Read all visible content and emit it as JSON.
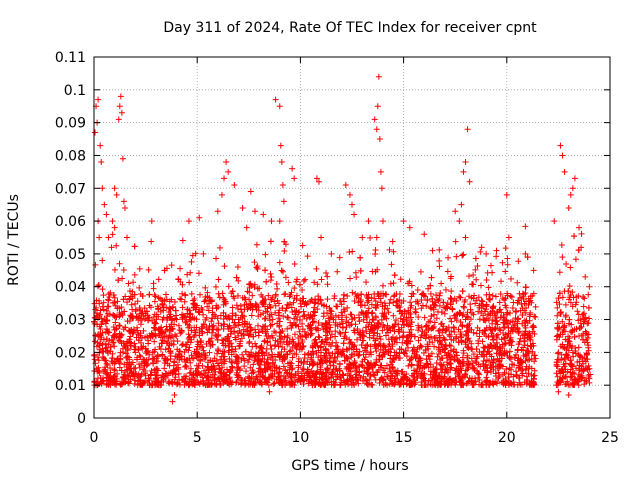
{
  "chart_data": {
    "type": "scatter",
    "title": "Day 311 of 2024, Rate Of TEC Index for receiver cpnt",
    "xlabel": "GPS time / hours",
    "ylabel": "ROTI / TECUs",
    "xlim": [
      0,
      25
    ],
    "ylim": [
      0,
      0.11
    ],
    "x_ticks": [
      0,
      5,
      10,
      15,
      20,
      25
    ],
    "x_tick_labels": [
      "0",
      "5",
      "10",
      "15",
      "20",
      "25"
    ],
    "y_ticks": [
      0,
      0.01,
      0.02,
      0.03,
      0.04,
      0.05,
      0.06,
      0.07,
      0.08,
      0.09,
      0.1,
      0.11
    ],
    "y_tick_labels": [
      "0",
      "0.01",
      "0.02",
      "0.03",
      "0.04",
      "0.05",
      "0.06",
      "0.07",
      "0.08",
      "0.09",
      "0.1",
      "0.11"
    ],
    "grid": true,
    "marker": "+",
    "colors": {
      "points": "#ff0000",
      "grid": "#a0a0a0",
      "axes": "#000000"
    },
    "series": [
      {
        "name": "ROTI",
        "note": "dense point cloud; representative sample of the plotted points",
        "points": [
          [
            0.05,
            0.087
          ],
          [
            0.1,
            0.095
          ],
          [
            0.15,
            0.09
          ],
          [
            0.2,
            0.097
          ],
          [
            0.3,
            0.083
          ],
          [
            0.35,
            0.078
          ],
          [
            0.4,
            0.07
          ],
          [
            0.5,
            0.065
          ],
          [
            0.6,
            0.062
          ],
          [
            0.7,
            0.055
          ],
          [
            0.2,
            0.06
          ],
          [
            0.25,
            0.055
          ],
          [
            0.4,
            0.048
          ],
          [
            1.0,
            0.07
          ],
          [
            1.1,
            0.068
          ],
          [
            1.2,
            0.091
          ],
          [
            1.25,
            0.095
          ],
          [
            1.3,
            0.098
          ],
          [
            1.35,
            0.093
          ],
          [
            1.4,
            0.079
          ],
          [
            1.45,
            0.066
          ],
          [
            1.5,
            0.064
          ],
          [
            1.6,
            0.055
          ],
          [
            1.0,
            0.058
          ],
          [
            0.9,
            0.06
          ],
          [
            0.85,
            0.052
          ],
          [
            2.8,
            0.06
          ],
          [
            4.6,
            0.06
          ],
          [
            5.1,
            0.061
          ],
          [
            5.3,
            0.05
          ],
          [
            6.0,
            0.063
          ],
          [
            6.2,
            0.068
          ],
          [
            6.3,
            0.073
          ],
          [
            6.4,
            0.078
          ],
          [
            6.5,
            0.075
          ],
          [
            6.8,
            0.071
          ],
          [
            7.2,
            0.064
          ],
          [
            7.4,
            0.058
          ],
          [
            7.6,
            0.069
          ],
          [
            7.8,
            0.063
          ],
          [
            8.2,
            0.062
          ],
          [
            8.6,
            0.06
          ],
          [
            8.8,
            0.097
          ],
          [
            9.0,
            0.095
          ],
          [
            9.05,
            0.083
          ],
          [
            9.1,
            0.078
          ],
          [
            9.15,
            0.071
          ],
          [
            9.2,
            0.066
          ],
          [
            9.0,
            0.06
          ],
          [
            9.6,
            0.076
          ],
          [
            9.7,
            0.073
          ],
          [
            10.8,
            0.073
          ],
          [
            10.9,
            0.072
          ],
          [
            11.0,
            0.055
          ],
          [
            11.5,
            0.05
          ],
          [
            12.2,
            0.071
          ],
          [
            12.4,
            0.068
          ],
          [
            12.5,
            0.065
          ],
          [
            12.6,
            0.062
          ],
          [
            13.0,
            0.055
          ],
          [
            13.3,
            0.06
          ],
          [
            13.6,
            0.091
          ],
          [
            13.7,
            0.088
          ],
          [
            13.75,
            0.095
          ],
          [
            13.8,
            0.104
          ],
          [
            13.85,
            0.085
          ],
          [
            13.9,
            0.075
          ],
          [
            13.95,
            0.07
          ],
          [
            14.0,
            0.06
          ],
          [
            13.7,
            0.055
          ],
          [
            15.0,
            0.06
          ],
          [
            15.3,
            0.058
          ],
          [
            16.0,
            0.056
          ],
          [
            16.4,
            0.051
          ],
          [
            17.5,
            0.063
          ],
          [
            17.7,
            0.06
          ],
          [
            17.8,
            0.065
          ],
          [
            17.9,
            0.075
          ],
          [
            18.0,
            0.078
          ],
          [
            18.1,
            0.088
          ],
          [
            18.2,
            0.072
          ],
          [
            18.0,
            0.055
          ],
          [
            19.0,
            0.05
          ],
          [
            19.5,
            0.051
          ],
          [
            20.0,
            0.068
          ],
          [
            20.1,
            0.055
          ],
          [
            20.9,
            0.05
          ],
          [
            21.3,
            0.045
          ],
          [
            22.3,
            0.06
          ],
          [
            22.6,
            0.083
          ],
          [
            22.7,
            0.08
          ],
          [
            22.8,
            0.075
          ],
          [
            23.0,
            0.064
          ],
          [
            23.1,
            0.068
          ],
          [
            23.2,
            0.07
          ],
          [
            23.3,
            0.073
          ],
          [
            23.5,
            0.058
          ],
          [
            23.6,
            0.052
          ],
          [
            23.8,
            0.043
          ],
          [
            24.0,
            0.04
          ],
          [
            0.5,
            0.03
          ],
          [
            1.0,
            0.025
          ],
          [
            2.0,
            0.02
          ],
          [
            3.0,
            0.025
          ],
          [
            4.0,
            0.03
          ],
          [
            5.0,
            0.02
          ],
          [
            6.0,
            0.025
          ],
          [
            7.0,
            0.03
          ],
          [
            8.0,
            0.02
          ],
          [
            9.0,
            0.015
          ],
          [
            10.0,
            0.025
          ],
          [
            11.0,
            0.02
          ],
          [
            12.0,
            0.03
          ],
          [
            13.0,
            0.025
          ],
          [
            14.0,
            0.02
          ],
          [
            15.0,
            0.03
          ],
          [
            16.0,
            0.025
          ],
          [
            17.0,
            0.02
          ],
          [
            18.0,
            0.03
          ],
          [
            19.0,
            0.025
          ],
          [
            20.0,
            0.02
          ],
          [
            21.0,
            0.025
          ],
          [
            22.5,
            0.02
          ],
          [
            23.5,
            0.025
          ],
          [
            24.0,
            0.015
          ],
          [
            3.8,
            0.005
          ],
          [
            3.9,
            0.007
          ],
          [
            8.5,
            0.008
          ],
          [
            14.2,
            0.01
          ],
          [
            16.5,
            0.012
          ],
          [
            22.5,
            0.008
          ],
          [
            23.0,
            0.007
          ],
          [
            24.0,
            0.012
          ]
        ]
      }
    ]
  }
}
